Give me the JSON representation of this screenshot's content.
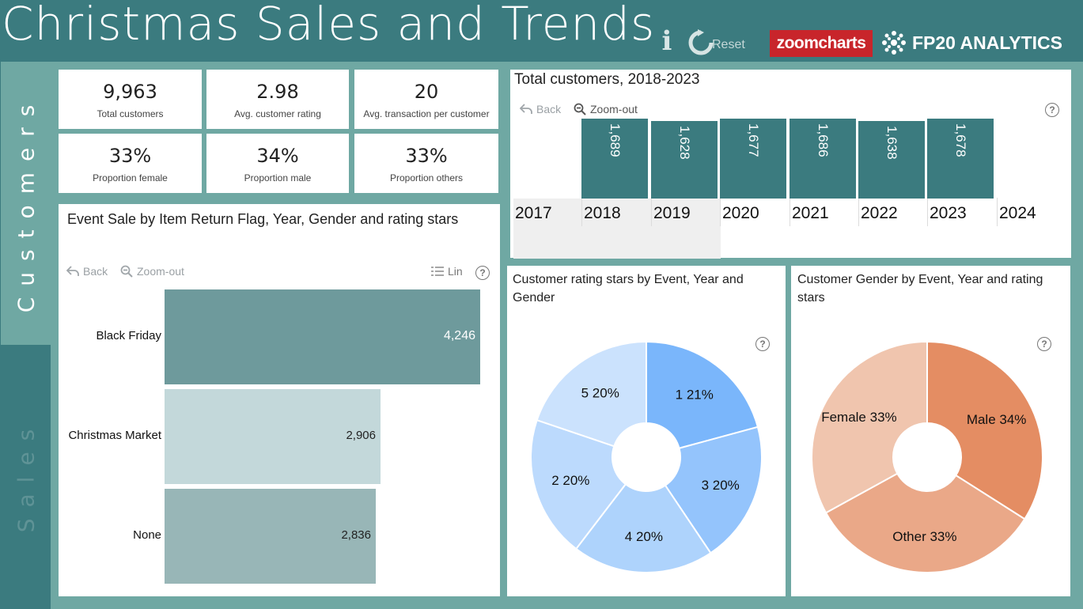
{
  "header": {
    "title": "Christmas Sales and Trends",
    "info_glyph": "i",
    "reset_label": "Reset",
    "zoomcharts_logo": "zoomcharts",
    "fp20_logo": "FP20 ANALYTICS"
  },
  "side_tabs": [
    {
      "label": "Customers",
      "active": true
    },
    {
      "label": "Sales",
      "active": false
    }
  ],
  "kpis": [
    {
      "value": "9,963",
      "label": "Total customers"
    },
    {
      "value": "2.98",
      "label": "Avg. customer rating"
    },
    {
      "value": "20",
      "label": "Avg. transaction per customer"
    },
    {
      "value": "33%",
      "label": "Proportion female"
    },
    {
      "value": "34%",
      "label": "Proportion male"
    },
    {
      "value": "33%",
      "label": "Proportion others"
    }
  ],
  "toolbar": {
    "back_label": "Back",
    "zoom_out_label": "Zoom-out",
    "lin_label": "Lin",
    "help_glyph": "?"
  },
  "colors": {
    "teal_dark": "#3b7b7f",
    "teal_light": "#6fa8a3",
    "bar_black_friday": "#6e9a9c",
    "bar_christmas_market": "#c3d8da",
    "bar_none": "#98b6b7",
    "pie_blue": [
      "#7ab6fb",
      "#94c4fc",
      "#aed3fc",
      "#bcdafd",
      "#cbe2fd"
    ],
    "pie_orange": [
      "#e48d63",
      "#eaa888",
      "#f0c5ae"
    ]
  },
  "event_sale_chart": {
    "title": "Event Sale by Item Return Flag, Year, Gender and  rating stars",
    "chart_data": {
      "type": "bar",
      "orientation": "horizontal",
      "categories": [
        "Black Friday",
        "Christmas Market",
        "None"
      ],
      "values": [
        4246,
        2906,
        2836
      ],
      "value_labels": [
        "4,246",
        "2,906",
        "2,836"
      ],
      "xlim": [
        0,
        4246
      ]
    }
  },
  "customers_chart": {
    "title": "Total customers, 2018-2023",
    "chart_data": {
      "type": "bar",
      "categories": [
        "2017",
        "2018",
        "2019",
        "2020",
        "2021",
        "2022",
        "2023",
        "2024"
      ],
      "values": [
        null,
        1689,
        1628,
        1677,
        1686,
        1638,
        1678,
        null
      ],
      "value_labels": [
        "",
        "1,689",
        "1,628",
        "1,677",
        "1,686",
        "1,638",
        "1,678",
        ""
      ],
      "ylim": [
        0,
        1700
      ]
    }
  },
  "rating_pie": {
    "title": "Customer rating stars by  Event,  Year and Gender",
    "chart_data": {
      "type": "pie",
      "donut": true,
      "labels": [
        "1",
        "3",
        "4",
        "2",
        "5"
      ],
      "values": [
        21,
        20,
        20,
        20,
        20
      ],
      "slice_labels": [
        "1 21%",
        "3 20%",
        "4 20%",
        "2 20%",
        "5 20%"
      ]
    }
  },
  "gender_pie": {
    "title": "Customer Gender by  Event,  Year and rating stars",
    "chart_data": {
      "type": "pie",
      "donut": true,
      "labels": [
        "Male",
        "Other",
        "Female"
      ],
      "values": [
        34,
        33,
        33
      ],
      "slice_labels": [
        "Male 34%",
        "Other 33%",
        "Female 33%"
      ]
    }
  }
}
